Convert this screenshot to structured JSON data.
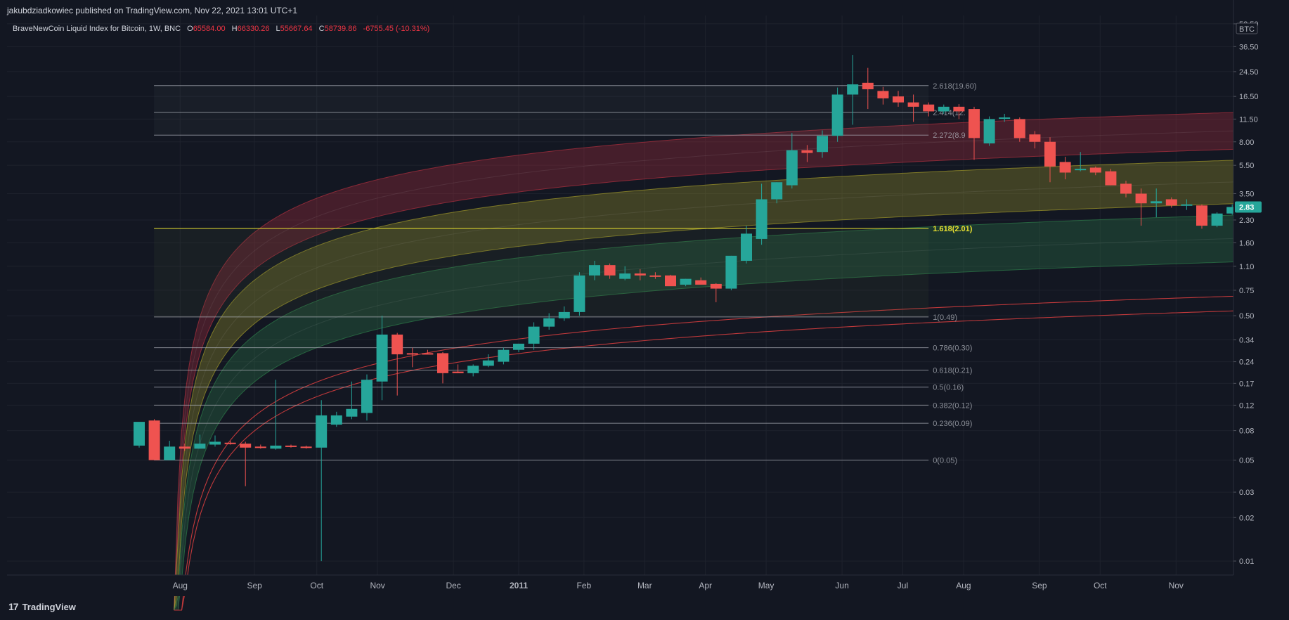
{
  "header": {
    "published": "jakubdziadkowiec published on TradingView.com, Nov 22, 2021 13:01 UTC+1"
  },
  "legend": {
    "symbol": "BraveNewCoin Liquid Index for Bitcoin, 1W, BNC",
    "open": "65584.00",
    "high": "66330.26",
    "low": "55667.64",
    "close": "58739.86",
    "change": "-6755.45 (-10.31%)"
  },
  "footer": {
    "logo": "17",
    "brand": "TradingView"
  },
  "colors": {
    "background": "#131722",
    "up": "#26a69a",
    "down": "#ef5350",
    "fib_line": "#b2b5be",
    "fib_highlight": "#e8e030",
    "band_red": "#b0303e",
    "band_yellow": "#a39a2a",
    "band_green": "#2e7d4a",
    "price_badge": "#26a69a"
  },
  "chart_data": {
    "type": "candlestick",
    "scale": "log",
    "currency": "BTC",
    "current_price": "2.83",
    "ylim": [
      0.008,
      60
    ],
    "y_ticks": [
      "52.50",
      "36.50",
      "24.50",
      "16.50",
      "11.50",
      "8.00",
      "5.50",
      "3.50",
      "2.30",
      "1.60",
      "1.10",
      "0.75",
      "0.50",
      "0.34",
      "0.24",
      "0.17",
      "0.12",
      "0.08",
      "0.05",
      "0.03",
      "0.02",
      "0.01"
    ],
    "x_ticks": [
      "Aug",
      "Sep",
      "Oct",
      "Nov",
      "Dec",
      "2011",
      "Feb",
      "Mar",
      "Apr",
      "May",
      "Jun",
      "Jul",
      "Aug",
      "Sep",
      "Oct",
      "Nov"
    ],
    "x_tick_weeks": [
      2.7,
      7.6,
      11.7,
      15.7,
      20.7,
      25.0,
      29.3,
      33.3,
      37.3,
      41.3,
      46.3,
      50.3,
      54.3,
      59.3,
      63.3,
      68.3
    ],
    "fib_levels": [
      {
        "label": "2.618(19.60)",
        "value": 19.6
      },
      {
        "label": "2.414(12.",
        "value": 12.8
      },
      {
        "label": "2.272(8.9",
        "value": 8.9
      },
      {
        "label": "1.618(2.01)",
        "value": 2.01,
        "highlight": true
      },
      {
        "label": "1(0.49)",
        "value": 0.49
      },
      {
        "label": "0.786(0.30)",
        "value": 0.3
      },
      {
        "label": "0.618(0.21)",
        "value": 0.21
      },
      {
        "label": "0.5(0.16)",
        "value": 0.16
      },
      {
        "label": "0.382(0.12)",
        "value": 0.12
      },
      {
        "label": "0.236(0.09)",
        "value": 0.09
      },
      {
        "label": "0(0.05)",
        "value": 0.05
      }
    ],
    "fib_range_weeks": [
      1.0,
      52.0
    ],
    "bands_ref_week": 40,
    "bands": [
      {
        "name": "red",
        "low": 5.0,
        "high": 9.0,
        "color": "#b0303e"
      },
      {
        "name": "yellow",
        "low": 2.1,
        "high": 4.2,
        "color": "#a39a2a"
      },
      {
        "name": "green",
        "low": 0.83,
        "high": 1.75,
        "color": "#2e7d4a"
      }
    ],
    "support_lines": [
      {
        "ref_value": 0.48,
        "color": "#c0393b"
      },
      {
        "ref_value": 0.38,
        "color": "#c0393b"
      }
    ],
    "candles": [
      {
        "w": 0,
        "o": 0.063,
        "h": 0.09,
        "l": 0.061,
        "c": 0.092
      },
      {
        "w": 1,
        "o": 0.094,
        "h": 0.096,
        "l": 0.05,
        "c": 0.05
      },
      {
        "w": 2,
        "o": 0.05,
        "h": 0.068,
        "l": 0.05,
        "c": 0.062
      },
      {
        "w": 3,
        "o": 0.062,
        "h": 0.065,
        "l": 0.058,
        "c": 0.06
      },
      {
        "w": 4,
        "o": 0.06,
        "h": 0.075,
        "l": 0.06,
        "c": 0.065
      },
      {
        "w": 5,
        "o": 0.064,
        "h": 0.074,
        "l": 0.062,
        "c": 0.067
      },
      {
        "w": 6,
        "o": 0.066,
        "h": 0.068,
        "l": 0.064,
        "c": 0.065
      },
      {
        "w": 7,
        "o": 0.065,
        "h": 0.067,
        "l": 0.033,
        "c": 0.061
      },
      {
        "w": 8,
        "o": 0.062,
        "h": 0.064,
        "l": 0.06,
        "c": 0.061
      },
      {
        "w": 9,
        "o": 0.06,
        "h": 0.18,
        "l": 0.059,
        "c": 0.063
      },
      {
        "w": 10,
        "o": 0.063,
        "h": 0.064,
        "l": 0.061,
        "c": 0.062
      },
      {
        "w": 11,
        "o": 0.062,
        "h": 0.063,
        "l": 0.06,
        "c": 0.061
      },
      {
        "w": 12,
        "o": 0.061,
        "h": 0.13,
        "l": 0.01,
        "c": 0.102
      },
      {
        "w": 13,
        "o": 0.088,
        "h": 0.108,
        "l": 0.085,
        "c": 0.102
      },
      {
        "w": 14,
        "o": 0.1,
        "h": 0.175,
        "l": 0.096,
        "c": 0.113
      },
      {
        "w": 15,
        "o": 0.106,
        "h": 0.196,
        "l": 0.094,
        "c": 0.18
      },
      {
        "w": 16,
        "o": 0.175,
        "h": 0.5,
        "l": 0.13,
        "c": 0.37
      },
      {
        "w": 17,
        "o": 0.37,
        "h": 0.38,
        "l": 0.14,
        "c": 0.27
      },
      {
        "w": 18,
        "o": 0.275,
        "h": 0.3,
        "l": 0.22,
        "c": 0.27
      },
      {
        "w": 19,
        "o": 0.275,
        "h": 0.29,
        "l": 0.27,
        "c": 0.27
      },
      {
        "w": 20,
        "o": 0.275,
        "h": 0.28,
        "l": 0.17,
        "c": 0.2
      },
      {
        "w": 21,
        "o": 0.205,
        "h": 0.23,
        "l": 0.2,
        "c": 0.2
      },
      {
        "w": 22,
        "o": 0.2,
        "h": 0.23,
        "l": 0.19,
        "c": 0.225
      },
      {
        "w": 23,
        "o": 0.225,
        "h": 0.27,
        "l": 0.22,
        "c": 0.245
      },
      {
        "w": 24,
        "o": 0.24,
        "h": 0.3,
        "l": 0.23,
        "c": 0.29
      },
      {
        "w": 25,
        "o": 0.29,
        "h": 0.32,
        "l": 0.28,
        "c": 0.32
      },
      {
        "w": 26,
        "o": 0.32,
        "h": 0.45,
        "l": 0.29,
        "c": 0.42
      },
      {
        "w": 27,
        "o": 0.42,
        "h": 0.52,
        "l": 0.4,
        "c": 0.48
      },
      {
        "w": 28,
        "o": 0.48,
        "h": 0.58,
        "l": 0.46,
        "c": 0.53
      },
      {
        "w": 29,
        "o": 0.53,
        "h": 1.0,
        "l": 0.5,
        "c": 0.95
      },
      {
        "w": 30,
        "o": 0.95,
        "h": 1.2,
        "l": 0.88,
        "c": 1.12
      },
      {
        "w": 31,
        "o": 1.12,
        "h": 1.15,
        "l": 0.9,
        "c": 0.95
      },
      {
        "w": 32,
        "o": 0.9,
        "h": 1.1,
        "l": 0.88,
        "c": 0.98
      },
      {
        "w": 33,
        "o": 0.98,
        "h": 1.05,
        "l": 0.88,
        "c": 0.95
      },
      {
        "w": 34,
        "o": 0.95,
        "h": 1.0,
        "l": 0.9,
        "c": 0.93
      },
      {
        "w": 35,
        "o": 0.95,
        "h": 0.96,
        "l": 0.82,
        "c": 0.8
      },
      {
        "w": 36,
        "o": 0.82,
        "h": 0.9,
        "l": 0.8,
        "c": 0.9
      },
      {
        "w": 37,
        "o": 0.88,
        "h": 0.92,
        "l": 0.82,
        "c": 0.82
      },
      {
        "w": 38,
        "o": 0.83,
        "h": 0.84,
        "l": 0.62,
        "c": 0.77
      },
      {
        "w": 39,
        "o": 0.77,
        "h": 1.3,
        "l": 0.75,
        "c": 1.3
      },
      {
        "w": 40,
        "o": 1.2,
        "h": 2.1,
        "l": 1.15,
        "c": 1.85
      },
      {
        "w": 41,
        "o": 1.7,
        "h": 4.1,
        "l": 1.55,
        "c": 3.2
      },
      {
        "w": 42,
        "o": 3.2,
        "h": 4.2,
        "l": 3.0,
        "c": 4.2
      },
      {
        "w": 43,
        "o": 4.0,
        "h": 9.2,
        "l": 3.8,
        "c": 7.0
      },
      {
        "w": 44,
        "o": 7.0,
        "h": 7.6,
        "l": 5.8,
        "c": 6.7
      },
      {
        "w": 45,
        "o": 6.8,
        "h": 9.6,
        "l": 6.2,
        "c": 8.8
      },
      {
        "w": 46,
        "o": 8.8,
        "h": 19.0,
        "l": 8.0,
        "c": 17.0
      },
      {
        "w": 47,
        "o": 17.0,
        "h": 32.0,
        "l": 10.5,
        "c": 20.0
      },
      {
        "w": 48,
        "o": 20.5,
        "h": 26.0,
        "l": 13.5,
        "c": 18.5
      },
      {
        "w": 49,
        "o": 18.0,
        "h": 19.2,
        "l": 14.5,
        "c": 16.0
      },
      {
        "w": 50,
        "o": 16.5,
        "h": 18.0,
        "l": 14.0,
        "c": 15.0
      },
      {
        "w": 51,
        "o": 15.0,
        "h": 17.0,
        "l": 11.0,
        "c": 14.0
      },
      {
        "w": 52,
        "o": 14.5,
        "h": 15.0,
        "l": 12.0,
        "c": 13.0
      },
      {
        "w": 53,
        "o": 13.0,
        "h": 14.5,
        "l": 12.5,
        "c": 14.0
      },
      {
        "w": 54,
        "o": 14.0,
        "h": 14.6,
        "l": 11.5,
        "c": 13.0
      },
      {
        "w": 55,
        "o": 13.5,
        "h": 14.0,
        "l": 6.0,
        "c": 8.5
      },
      {
        "w": 56,
        "o": 7.8,
        "h": 12.0,
        "l": 7.5,
        "c": 11.5
      },
      {
        "w": 57,
        "o": 11.6,
        "h": 12.5,
        "l": 11.0,
        "c": 11.8
      },
      {
        "w": 58,
        "o": 11.5,
        "h": 11.8,
        "l": 8.0,
        "c": 8.5
      },
      {
        "w": 59,
        "o": 9.0,
        "h": 9.5,
        "l": 7.2,
        "c": 8.0
      },
      {
        "w": 60,
        "o": 8.0,
        "h": 8.6,
        "l": 4.2,
        "c": 5.4
      },
      {
        "w": 61,
        "o": 5.8,
        "h": 6.3,
        "l": 4.4,
        "c": 4.9
      },
      {
        "w": 62,
        "o": 5.1,
        "h": 6.8,
        "l": 5.0,
        "c": 5.2
      },
      {
        "w": 63,
        "o": 5.3,
        "h": 5.4,
        "l": 4.7,
        "c": 4.9
      },
      {
        "w": 64,
        "o": 5.0,
        "h": 5.2,
        "l": 4.0,
        "c": 4.0
      },
      {
        "w": 65,
        "o": 4.1,
        "h": 4.3,
        "l": 3.3,
        "c": 3.5
      },
      {
        "w": 66,
        "o": 3.5,
        "h": 3.8,
        "l": 2.1,
        "c": 3.0
      },
      {
        "w": 67,
        "o": 3.0,
        "h": 3.8,
        "l": 2.4,
        "c": 3.1
      },
      {
        "w": 68,
        "o": 3.2,
        "h": 3.3,
        "l": 2.8,
        "c": 2.9
      },
      {
        "w": 69,
        "o": 2.95,
        "h": 3.2,
        "l": 2.7,
        "c": 2.95
      },
      {
        "w": 70,
        "o": 2.9,
        "h": 2.95,
        "l": 2.0,
        "c": 2.1
      },
      {
        "w": 71,
        "o": 2.1,
        "h": 2.6,
        "l": 2.05,
        "c": 2.55
      },
      {
        "w": 72,
        "o": 2.55,
        "h": 2.95,
        "l": 2.5,
        "c": 2.83
      }
    ]
  }
}
